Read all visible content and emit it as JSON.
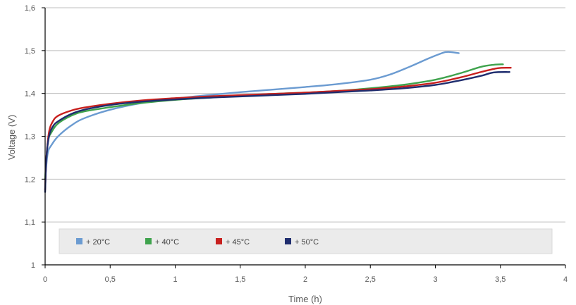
{
  "chart_data": {
    "type": "line",
    "xlabel": "Time (h)",
    "ylabel": "Voltage (V)",
    "xlim": [
      0,
      4
    ],
    "ylim": [
      1,
      1.6
    ],
    "x_ticks": [
      0,
      0.5,
      1,
      1.5,
      2,
      2.5,
      3,
      3.5,
      4
    ],
    "x_tick_labels": [
      "0",
      "0,5",
      "1",
      "1,5",
      "2",
      "2,5",
      "3",
      "3,5",
      "4"
    ],
    "y_ticks": [
      1,
      1.1,
      1.2,
      1.3,
      1.4,
      1.5,
      1.6
    ],
    "y_tick_labels": [
      "1",
      "1,1",
      "1,2",
      "1,3",
      "1,4",
      "1,5",
      "1,6"
    ],
    "grid": "horizontal",
    "legend_position": "bottom-inside",
    "series": [
      {
        "name": "+ 20°C",
        "color": "#6b9bd1",
        "points": [
          [
            0,
            1.2
          ],
          [
            0.02,
            1.26
          ],
          [
            0.05,
            1.28
          ],
          [
            0.1,
            1.3
          ],
          [
            0.2,
            1.325
          ],
          [
            0.3,
            1.342
          ],
          [
            0.5,
            1.362
          ],
          [
            0.75,
            1.378
          ],
          [
            1,
            1.388
          ],
          [
            1.25,
            1.396
          ],
          [
            1.5,
            1.403
          ],
          [
            1.75,
            1.409
          ],
          [
            2,
            1.415
          ],
          [
            2.25,
            1.422
          ],
          [
            2.5,
            1.432
          ],
          [
            2.65,
            1.444
          ],
          [
            2.8,
            1.462
          ],
          [
            2.95,
            1.482
          ],
          [
            3.05,
            1.494
          ],
          [
            3.1,
            1.497
          ],
          [
            3.18,
            1.494
          ]
        ]
      },
      {
        "name": "+ 40°C",
        "color": "#3fa34d",
        "points": [
          [
            0,
            1.2
          ],
          [
            0.02,
            1.285
          ],
          [
            0.05,
            1.31
          ],
          [
            0.1,
            1.33
          ],
          [
            0.2,
            1.348
          ],
          [
            0.3,
            1.358
          ],
          [
            0.5,
            1.368
          ],
          [
            0.75,
            1.378
          ],
          [
            1,
            1.385
          ],
          [
            1.25,
            1.39
          ],
          [
            1.5,
            1.395
          ],
          [
            1.75,
            1.399
          ],
          [
            2,
            1.402
          ],
          [
            2.25,
            1.406
          ],
          [
            2.5,
            1.412
          ],
          [
            2.75,
            1.42
          ],
          [
            3,
            1.432
          ],
          [
            3.2,
            1.448
          ],
          [
            3.35,
            1.462
          ],
          [
            3.45,
            1.467
          ],
          [
            3.52,
            1.468
          ]
        ]
      },
      {
        "name": "+ 45°C",
        "color": "#c8201e",
        "points": [
          [
            0,
            1.175
          ],
          [
            0.01,
            1.25
          ],
          [
            0.03,
            1.31
          ],
          [
            0.06,
            1.335
          ],
          [
            0.1,
            1.348
          ],
          [
            0.2,
            1.36
          ],
          [
            0.3,
            1.367
          ],
          [
            0.5,
            1.376
          ],
          [
            0.75,
            1.384
          ],
          [
            1,
            1.389
          ],
          [
            1.25,
            1.393
          ],
          [
            1.5,
            1.396
          ],
          [
            1.75,
            1.399
          ],
          [
            2,
            1.402
          ],
          [
            2.25,
            1.406
          ],
          [
            2.5,
            1.41
          ],
          [
            2.75,
            1.416
          ],
          [
            3,
            1.425
          ],
          [
            3.2,
            1.438
          ],
          [
            3.35,
            1.45
          ],
          [
            3.48,
            1.459
          ],
          [
            3.58,
            1.46
          ]
        ]
      },
      {
        "name": "+ 50°C",
        "color": "#1f2d6e",
        "points": [
          [
            0,
            1.17
          ],
          [
            0.01,
            1.25
          ],
          [
            0.03,
            1.3
          ],
          [
            0.06,
            1.323
          ],
          [
            0.1,
            1.335
          ],
          [
            0.2,
            1.352
          ],
          [
            0.3,
            1.362
          ],
          [
            0.5,
            1.373
          ],
          [
            0.75,
            1.381
          ],
          [
            1,
            1.386
          ],
          [
            1.25,
            1.39
          ],
          [
            1.5,
            1.393
          ],
          [
            1.75,
            1.396
          ],
          [
            2,
            1.399
          ],
          [
            2.25,
            1.403
          ],
          [
            2.5,
            1.407
          ],
          [
            2.75,
            1.412
          ],
          [
            3,
            1.42
          ],
          [
            3.2,
            1.431
          ],
          [
            3.35,
            1.441
          ],
          [
            3.45,
            1.449
          ],
          [
            3.57,
            1.45
          ]
        ]
      }
    ]
  }
}
